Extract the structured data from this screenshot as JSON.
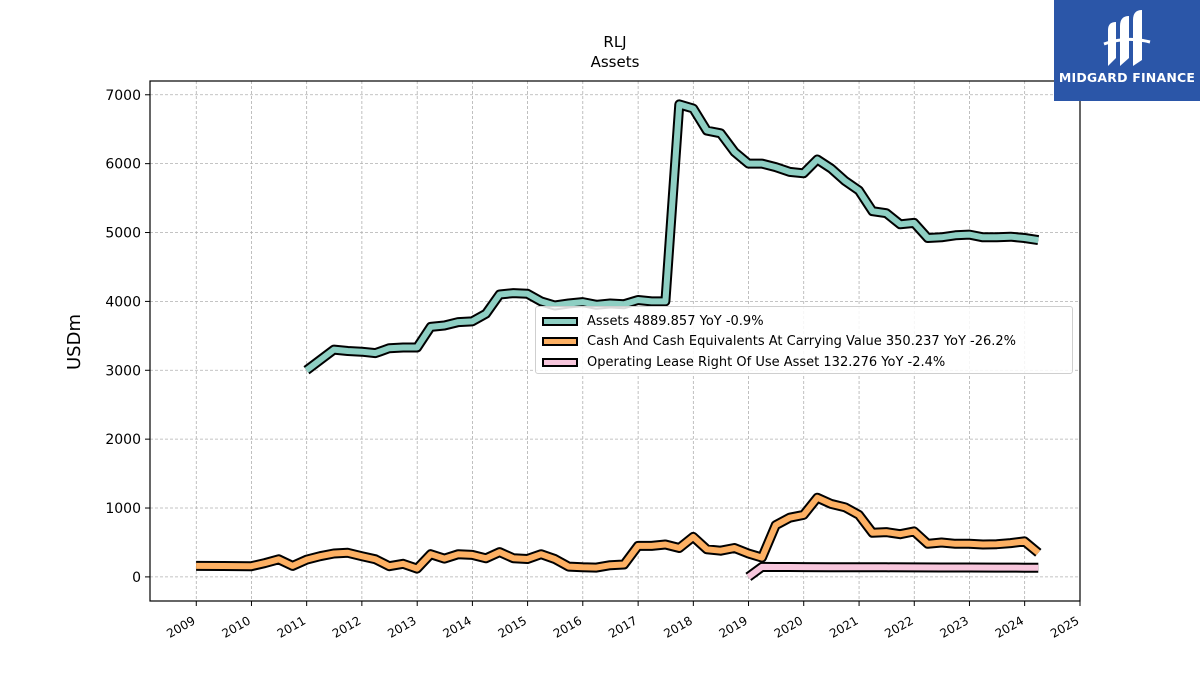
{
  "brand": {
    "name": "MIDGARD FINANCE",
    "bg_color": "#2b56a8",
    "icon": "midgard-logo-icon"
  },
  "chart_data": {
    "type": "line",
    "title": "RLJ",
    "subtitle": "Assets",
    "xlabel": "",
    "ylabel": "USDm",
    "xlim": [
      "2008-03-01",
      "2025-01-01"
    ],
    "ylim": [
      -350,
      7200
    ],
    "x_ticks": [
      "2009",
      "2010",
      "2011",
      "2012",
      "2013",
      "2014",
      "2015",
      "2016",
      "2017",
      "2018",
      "2019",
      "2020",
      "2021",
      "2022",
      "2023",
      "2024",
      "2025"
    ],
    "y_ticks": [
      "0",
      "1000",
      "2000",
      "3000",
      "4000",
      "5000",
      "6000",
      "7000"
    ],
    "grid": true,
    "legend_position": "center-right",
    "series": [
      {
        "name": "Assets",
        "legend_label": "Assets  4889.857 YoY -0.9%",
        "color": "#8ecfc3",
        "points": [
          [
            "2010-12-31",
            3000
          ],
          [
            "2011-06-30",
            3300
          ],
          [
            "2011-09-30",
            3280
          ],
          [
            "2011-12-31",
            3270
          ],
          [
            "2012-03-31",
            3250
          ],
          [
            "2012-06-30",
            3320
          ],
          [
            "2012-09-30",
            3330
          ],
          [
            "2012-12-31",
            3330
          ],
          [
            "2013-03-31",
            3630
          ],
          [
            "2013-06-30",
            3650
          ],
          [
            "2013-09-30",
            3700
          ],
          [
            "2013-12-31",
            3710
          ],
          [
            "2014-03-31",
            3820
          ],
          [
            "2014-06-30",
            4100
          ],
          [
            "2014-09-30",
            4120
          ],
          [
            "2014-12-31",
            4110
          ],
          [
            "2015-03-31",
            4000
          ],
          [
            "2015-06-30",
            3940
          ],
          [
            "2015-09-30",
            3970
          ],
          [
            "2015-12-31",
            3990
          ],
          [
            "2016-03-31",
            3950
          ],
          [
            "2016-06-30",
            3970
          ],
          [
            "2016-09-30",
            3960
          ],
          [
            "2016-12-31",
            4020
          ],
          [
            "2017-03-31",
            4000
          ],
          [
            "2017-06-30",
            4000
          ],
          [
            "2017-09-30",
            6860
          ],
          [
            "2017-12-31",
            6800
          ],
          [
            "2018-03-31",
            6480
          ],
          [
            "2018-06-30",
            6440
          ],
          [
            "2018-09-30",
            6170
          ],
          [
            "2018-12-31",
            6000
          ],
          [
            "2019-03-31",
            6000
          ],
          [
            "2019-06-30",
            5950
          ],
          [
            "2019-09-30",
            5880
          ],
          [
            "2019-12-31",
            5860
          ],
          [
            "2020-03-31",
            6060
          ],
          [
            "2020-06-30",
            5930
          ],
          [
            "2020-09-30",
            5750
          ],
          [
            "2020-12-31",
            5610
          ],
          [
            "2021-03-31",
            5310
          ],
          [
            "2021-06-30",
            5280
          ],
          [
            "2021-09-30",
            5120
          ],
          [
            "2021-12-31",
            5140
          ],
          [
            "2022-03-31",
            4920
          ],
          [
            "2022-06-30",
            4930
          ],
          [
            "2022-09-30",
            4960
          ],
          [
            "2022-12-31",
            4970
          ],
          [
            "2023-03-31",
            4930
          ],
          [
            "2023-06-30",
            4930
          ],
          [
            "2023-09-30",
            4940
          ],
          [
            "2023-12-31",
            4920
          ],
          [
            "2024-03-31",
            4890
          ]
        ]
      },
      {
        "name": "Cash And Cash Equivalents At Carrying Value",
        "legend_label": "Cash And Cash Equivalents At Carrying Value  350.237 YoY -26.2%",
        "color": "#fdb063",
        "points": [
          [
            "2008-12-31",
            160
          ],
          [
            "2009-06-30",
            158
          ],
          [
            "2009-12-31",
            155
          ],
          [
            "2010-03-31",
            200
          ],
          [
            "2010-06-30",
            255
          ],
          [
            "2010-09-30",
            160
          ],
          [
            "2010-12-31",
            250
          ],
          [
            "2011-03-31",
            300
          ],
          [
            "2011-06-30",
            340
          ],
          [
            "2011-09-30",
            350
          ],
          [
            "2011-12-31",
            300
          ],
          [
            "2012-03-31",
            255
          ],
          [
            "2012-06-30",
            155
          ],
          [
            "2012-09-30",
            190
          ],
          [
            "2012-12-31",
            120
          ],
          [
            "2013-03-31",
            330
          ],
          [
            "2013-06-30",
            265
          ],
          [
            "2013-09-30",
            330
          ],
          [
            "2013-12-31",
            320
          ],
          [
            "2014-03-31",
            270
          ],
          [
            "2014-06-30",
            360
          ],
          [
            "2014-09-30",
            270
          ],
          [
            "2014-12-31",
            260
          ],
          [
            "2015-03-31",
            330
          ],
          [
            "2015-06-30",
            260
          ],
          [
            "2015-09-30",
            150
          ],
          [
            "2015-12-31",
            140
          ],
          [
            "2016-03-31",
            135
          ],
          [
            "2016-06-30",
            170
          ],
          [
            "2016-09-30",
            180
          ],
          [
            "2016-12-31",
            450
          ],
          [
            "2017-03-31",
            450
          ],
          [
            "2017-06-30",
            470
          ],
          [
            "2017-09-30",
            420
          ],
          [
            "2017-12-31",
            580
          ],
          [
            "2018-03-31",
            400
          ],
          [
            "2018-06-30",
            380
          ],
          [
            "2018-09-30",
            420
          ],
          [
            "2018-12-31",
            340
          ],
          [
            "2019-03-31",
            280
          ],
          [
            "2019-06-30",
            750
          ],
          [
            "2019-09-30",
            860
          ],
          [
            "2019-12-31",
            900
          ],
          [
            "2020-03-31",
            1150
          ],
          [
            "2020-06-30",
            1060
          ],
          [
            "2020-09-30",
            1010
          ],
          [
            "2020-12-31",
            900
          ],
          [
            "2021-03-31",
            640
          ],
          [
            "2021-06-30",
            650
          ],
          [
            "2021-09-30",
            620
          ],
          [
            "2021-12-31",
            660
          ],
          [
            "2022-03-31",
            480
          ],
          [
            "2022-06-30",
            500
          ],
          [
            "2022-09-30",
            480
          ],
          [
            "2022-12-31",
            480
          ],
          [
            "2023-03-31",
            470
          ],
          [
            "2023-06-30",
            475
          ],
          [
            "2023-09-30",
            490
          ],
          [
            "2023-12-31",
            515
          ],
          [
            "2024-03-31",
            350
          ]
        ]
      },
      {
        "name": "Operating Lease Right Of Use Asset",
        "legend_label": "Operating Lease Right Of Use Asset  132.276 YoY -2.4%",
        "color": "#f7c6dc",
        "points": [
          [
            "2018-12-31",
            0
          ],
          [
            "2019-03-31",
            145
          ],
          [
            "2019-06-30",
            144
          ],
          [
            "2019-09-30",
            143
          ],
          [
            "2019-12-31",
            142
          ],
          [
            "2020-06-30",
            141
          ],
          [
            "2020-12-31",
            140
          ],
          [
            "2021-06-30",
            139
          ],
          [
            "2021-12-31",
            138
          ],
          [
            "2022-06-30",
            137
          ],
          [
            "2022-12-31",
            136
          ],
          [
            "2023-06-30",
            135
          ],
          [
            "2023-12-31",
            133
          ],
          [
            "2024-03-31",
            132
          ]
        ]
      }
    ]
  }
}
